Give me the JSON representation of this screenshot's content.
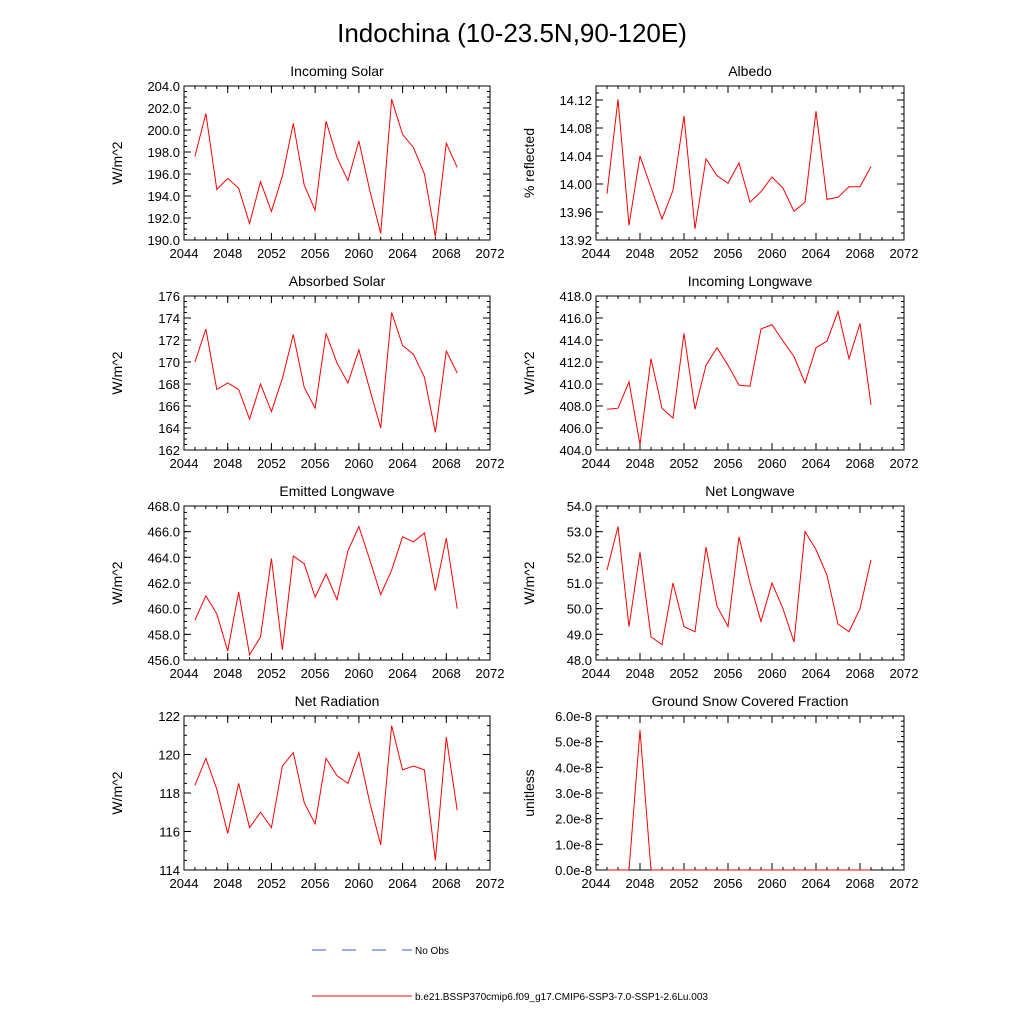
{
  "figure": {
    "title": "Indochina (10-23.5N,90-120E)"
  },
  "legend": {
    "entries": [
      {
        "label": "No Obs",
        "color": "#3b5bdb",
        "dashed": true
      },
      {
        "label": "b.e21.BSSP370cmip6.f09_g17.CMIP6-SSP3-7.0-SSP1-2.6Lu.003",
        "color": "#ff0000",
        "dashed": false
      }
    ]
  },
  "chart_data": [
    {
      "type": "line",
      "title": "Incoming Solar",
      "ylabel": "W/m^2",
      "xlim": [
        2044,
        2072
      ],
      "ylim": [
        190,
        204
      ],
      "xticks": [
        2044,
        2048,
        2052,
        2056,
        2060,
        2064,
        2068,
        2072
      ],
      "xtick_labels": [
        "2044",
        "2048",
        "2052",
        "2056",
        "2060",
        "2064",
        "2068",
        "2072"
      ],
      "yticks": [
        190,
        192,
        194,
        196,
        198,
        200,
        202,
        204
      ],
      "ytick_labels": [
        "190.0",
        "192.0",
        "194.0",
        "196.0",
        "198.0",
        "200.0",
        "202.0",
        "204.0"
      ],
      "yminor": 0.5,
      "series": [
        {
          "color": "#ff0000",
          "x": [
            2045,
            2046,
            2047,
            2048,
            2049,
            2050,
            2051,
            2052,
            2053,
            2054,
            2055,
            2056,
            2057,
            2058,
            2059,
            2060,
            2061,
            2062,
            2063,
            2064,
            2065,
            2066,
            2067,
            2068,
            2069
          ],
          "y": [
            197.6,
            201.5,
            194.6,
            195.6,
            194.7,
            191.5,
            195.3,
            192.6,
            195.8,
            200.6,
            195.0,
            192.7,
            200.8,
            197.5,
            195.4,
            199.0,
            194.5,
            190.6,
            202.8,
            199.6,
            198.4,
            196.0,
            190.3,
            198.8,
            196.6
          ]
        }
      ]
    },
    {
      "type": "line",
      "title": "Albedo",
      "ylabel": "% reflected",
      "xlim": [
        2044,
        2072
      ],
      "ylim": [
        13.92,
        14.14
      ],
      "xticks": [
        2044,
        2048,
        2052,
        2056,
        2060,
        2064,
        2068,
        2072
      ],
      "xtick_labels": [
        "2044",
        "2048",
        "2052",
        "2056",
        "2060",
        "2064",
        "2068",
        "2072"
      ],
      "yticks": [
        13.92,
        13.96,
        14.0,
        14.04,
        14.08,
        14.12
      ],
      "ytick_labels": [
        "13.92",
        "13.96",
        "14.00",
        "14.04",
        "14.08",
        "14.12"
      ],
      "yminor": 0.01,
      "series": [
        {
          "color": "#ff0000",
          "x": [
            2045,
            2046,
            2047,
            2048,
            2049,
            2050,
            2051,
            2052,
            2053,
            2054,
            2055,
            2056,
            2057,
            2058,
            2059,
            2060,
            2061,
            2062,
            2063,
            2064,
            2065,
            2066,
            2067,
            2068,
            2069
          ],
          "y": [
            13.986,
            14.121,
            13.941,
            14.04,
            13.995,
            13.95,
            13.991,
            14.097,
            13.936,
            14.036,
            14.012,
            14.001,
            14.03,
            13.974,
            13.989,
            14.01,
            13.994,
            13.961,
            13.974,
            14.104,
            13.978,
            13.981,
            13.996,
            13.996,
            14.025
          ]
        }
      ]
    },
    {
      "type": "line",
      "title": "Absorbed Solar",
      "ylabel": "W/m^2",
      "xlim": [
        2044,
        2072
      ],
      "ylim": [
        162,
        176
      ],
      "xticks": [
        2044,
        2048,
        2052,
        2056,
        2060,
        2064,
        2068,
        2072
      ],
      "xtick_labels": [
        "2044",
        "2048",
        "2052",
        "2056",
        "2060",
        "2064",
        "2068",
        "2072"
      ],
      "yticks": [
        162,
        164,
        166,
        168,
        170,
        172,
        174,
        176
      ],
      "ytick_labels": [
        "162",
        "164",
        "166",
        "168",
        "170",
        "172",
        "174",
        "176"
      ],
      "yminor": 0.5,
      "series": [
        {
          "color": "#ff0000",
          "x": [
            2045,
            2046,
            2047,
            2048,
            2049,
            2050,
            2051,
            2052,
            2053,
            2054,
            2055,
            2056,
            2057,
            2058,
            2059,
            2060,
            2061,
            2062,
            2063,
            2064,
            2065,
            2066,
            2067,
            2068,
            2069
          ],
          "y": [
            170.0,
            173.0,
            167.5,
            168.1,
            167.5,
            164.8,
            168.0,
            165.5,
            168.5,
            172.5,
            167.7,
            165.8,
            172.6,
            169.9,
            168.1,
            171.1,
            167.5,
            164.0,
            174.5,
            171.5,
            170.7,
            168.6,
            163.6,
            171.0,
            169.0
          ]
        }
      ]
    },
    {
      "type": "line",
      "title": "Incoming Longwave",
      "ylabel": "W/m^2",
      "xlim": [
        2044,
        2072
      ],
      "ylim": [
        404,
        418
      ],
      "xticks": [
        2044,
        2048,
        2052,
        2056,
        2060,
        2064,
        2068,
        2072
      ],
      "xtick_labels": [
        "2044",
        "2048",
        "2052",
        "2056",
        "2060",
        "2064",
        "2068",
        "2072"
      ],
      "yticks": [
        404,
        406,
        408,
        410,
        412,
        414,
        416,
        418
      ],
      "ytick_labels": [
        "404.0",
        "406.0",
        "408.0",
        "410.0",
        "412.0",
        "414.0",
        "416.0",
        "418.0"
      ],
      "yminor": 0.5,
      "series": [
        {
          "color": "#ff0000",
          "x": [
            2045,
            2046,
            2047,
            2048,
            2049,
            2050,
            2051,
            2052,
            2053,
            2054,
            2055,
            2056,
            2057,
            2058,
            2059,
            2060,
            2061,
            2062,
            2063,
            2064,
            2065,
            2066,
            2067,
            2068,
            2069
          ],
          "y": [
            407.7,
            407.8,
            410.2,
            404.5,
            412.3,
            407.8,
            406.9,
            414.6,
            407.7,
            411.7,
            413.3,
            411.7,
            409.9,
            409.8,
            415.0,
            415.4,
            413.9,
            412.5,
            410.1,
            413.3,
            413.9,
            416.6,
            412.3,
            415.5,
            408.1
          ]
        }
      ]
    },
    {
      "type": "line",
      "title": "Emitted Longwave",
      "ylabel": "W/m^2",
      "xlim": [
        2044,
        2072
      ],
      "ylim": [
        456,
        468
      ],
      "xticks": [
        2044,
        2048,
        2052,
        2056,
        2060,
        2064,
        2068,
        2072
      ],
      "xtick_labels": [
        "2044",
        "2048",
        "2052",
        "2056",
        "2060",
        "2064",
        "2068",
        "2072"
      ],
      "yticks": [
        456,
        458,
        460,
        462,
        464,
        466,
        468
      ],
      "ytick_labels": [
        "456.0",
        "458.0",
        "460.0",
        "462.0",
        "464.0",
        "466.0",
        "468.0"
      ],
      "yminor": 0.5,
      "series": [
        {
          "color": "#ff0000",
          "x": [
            2045,
            2046,
            2047,
            2048,
            2049,
            2050,
            2051,
            2052,
            2053,
            2054,
            2055,
            2056,
            2057,
            2058,
            2059,
            2060,
            2061,
            2062,
            2063,
            2064,
            2065,
            2066,
            2067,
            2068,
            2069
          ],
          "y": [
            459.1,
            461.0,
            459.6,
            456.7,
            461.3,
            456.4,
            457.8,
            463.9,
            456.8,
            464.1,
            463.5,
            460.9,
            462.7,
            460.7,
            464.5,
            466.4,
            463.8,
            461.1,
            463.0,
            465.6,
            465.2,
            465.9,
            461.4,
            465.5,
            460.0
          ]
        }
      ]
    },
    {
      "type": "line",
      "title": "Net Longwave",
      "ylabel": "W/m^2",
      "xlim": [
        2044,
        2072
      ],
      "ylim": [
        48,
        54
      ],
      "xticks": [
        2044,
        2048,
        2052,
        2056,
        2060,
        2064,
        2068,
        2072
      ],
      "xtick_labels": [
        "2044",
        "2048",
        "2052",
        "2056",
        "2060",
        "2064",
        "2068",
        "2072"
      ],
      "yticks": [
        48,
        49,
        50,
        51,
        52,
        53,
        54
      ],
      "ytick_labels": [
        "48.0",
        "49.0",
        "50.0",
        "51.0",
        "52.0",
        "53.0",
        "54.0"
      ],
      "yminor": 0.2,
      "series": [
        {
          "color": "#ff0000",
          "x": [
            2045,
            2046,
            2047,
            2048,
            2049,
            2050,
            2051,
            2052,
            2053,
            2054,
            2055,
            2056,
            2057,
            2058,
            2059,
            2060,
            2061,
            2062,
            2063,
            2064,
            2065,
            2066,
            2067,
            2068,
            2069
          ],
          "y": [
            51.5,
            53.2,
            49.3,
            52.2,
            48.9,
            48.6,
            51.0,
            49.3,
            49.1,
            52.4,
            50.1,
            49.3,
            52.8,
            51.0,
            49.5,
            51.0,
            50.0,
            48.7,
            53.0,
            52.3,
            51.3,
            49.4,
            49.1,
            50.0,
            51.9
          ]
        }
      ]
    },
    {
      "type": "line",
      "title": "Net Radiation",
      "ylabel": "W/m^2",
      "xlim": [
        2044,
        2072
      ],
      "ylim": [
        114,
        122
      ],
      "xticks": [
        2044,
        2048,
        2052,
        2056,
        2060,
        2064,
        2068,
        2072
      ],
      "xtick_labels": [
        "2044",
        "2048",
        "2052",
        "2056",
        "2060",
        "2064",
        "2068",
        "2072"
      ],
      "yticks": [
        114,
        116,
        118,
        120,
        122
      ],
      "ytick_labels": [
        "114",
        "116",
        "118",
        "120",
        "122"
      ],
      "yminor": 0.5,
      "series": [
        {
          "color": "#ff0000",
          "x": [
            2045,
            2046,
            2047,
            2048,
            2049,
            2050,
            2051,
            2052,
            2053,
            2054,
            2055,
            2056,
            2057,
            2058,
            2059,
            2060,
            2061,
            2062,
            2063,
            2064,
            2065,
            2066,
            2067,
            2068,
            2069
          ],
          "y": [
            118.4,
            119.8,
            118.2,
            115.9,
            118.5,
            116.2,
            117.0,
            116.2,
            119.4,
            120.1,
            117.5,
            116.4,
            119.8,
            118.9,
            118.5,
            120.1,
            117.5,
            115.3,
            121.5,
            119.2,
            119.4,
            119.2,
            114.5,
            120.9,
            117.1
          ]
        }
      ]
    },
    {
      "type": "line",
      "title": "Ground Snow Covered Fraction",
      "ylabel": "unitless",
      "xlim": [
        2044,
        2072
      ],
      "ylim": [
        0,
        6e-08
      ],
      "xticks": [
        2044,
        2048,
        2052,
        2056,
        2060,
        2064,
        2068,
        2072
      ],
      "xtick_labels": [
        "2044",
        "2048",
        "2052",
        "2056",
        "2060",
        "2064",
        "2068",
        "2072"
      ],
      "yticks": [
        0,
        1e-08,
        2e-08,
        3e-08,
        4e-08,
        5e-08,
        6e-08
      ],
      "ytick_labels": [
        "0.0e-8",
        "1.0e-8",
        "2.0e-8",
        "3.0e-8",
        "4.0e-8",
        "5.0e-8",
        "6.0e-8"
      ],
      "yminor": 2e-09,
      "series": [
        {
          "color": "#ff0000",
          "x": [
            2045,
            2046,
            2047,
            2048,
            2049,
            2050,
            2051,
            2052,
            2053,
            2054,
            2055,
            2056,
            2057,
            2058,
            2059,
            2060,
            2061,
            2062,
            2063,
            2064,
            2065,
            2066,
            2067,
            2068,
            2069
          ],
          "y": [
            0,
            0,
            0,
            5.45e-08,
            0,
            0,
            0,
            0,
            0,
            0,
            0,
            0,
            0,
            0,
            0,
            0,
            0,
            0,
            0,
            0,
            0,
            0,
            0,
            0,
            0
          ]
        }
      ]
    }
  ]
}
